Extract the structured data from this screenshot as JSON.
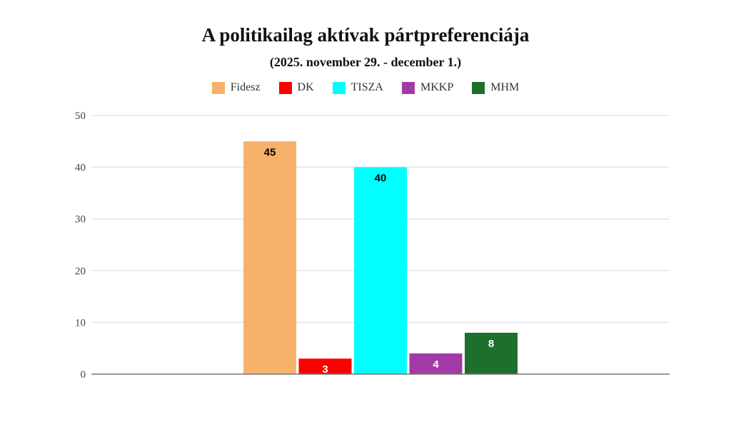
{
  "chart_data": {
    "type": "bar",
    "title": "A politikailag aktívak pártpreferenciája",
    "subtitle": "(2025. november 29. - december 1.)",
    "xlabel": "",
    "ylabel": "",
    "ylim": [
      0,
      50
    ],
    "yticks": [
      0,
      10,
      20,
      30,
      40,
      50
    ],
    "grid": true,
    "legend_position": "top",
    "series": [
      {
        "name": "Fidesz",
        "value": 45,
        "color": "#F6B26B",
        "label_color": "#000000"
      },
      {
        "name": "DK",
        "value": 3,
        "color": "#FF0000",
        "label_color": "#FFFFFF"
      },
      {
        "name": "TISZA",
        "value": 40,
        "color": "#00FFFF",
        "label_color": "#000000"
      },
      {
        "name": "MKKP",
        "value": 4,
        "color": "#A23BA5",
        "label_color": "#FFFFFF"
      },
      {
        "name": "MHM",
        "value": 8,
        "color": "#1E6E2C",
        "label_color": "#FFFFFF"
      }
    ]
  }
}
